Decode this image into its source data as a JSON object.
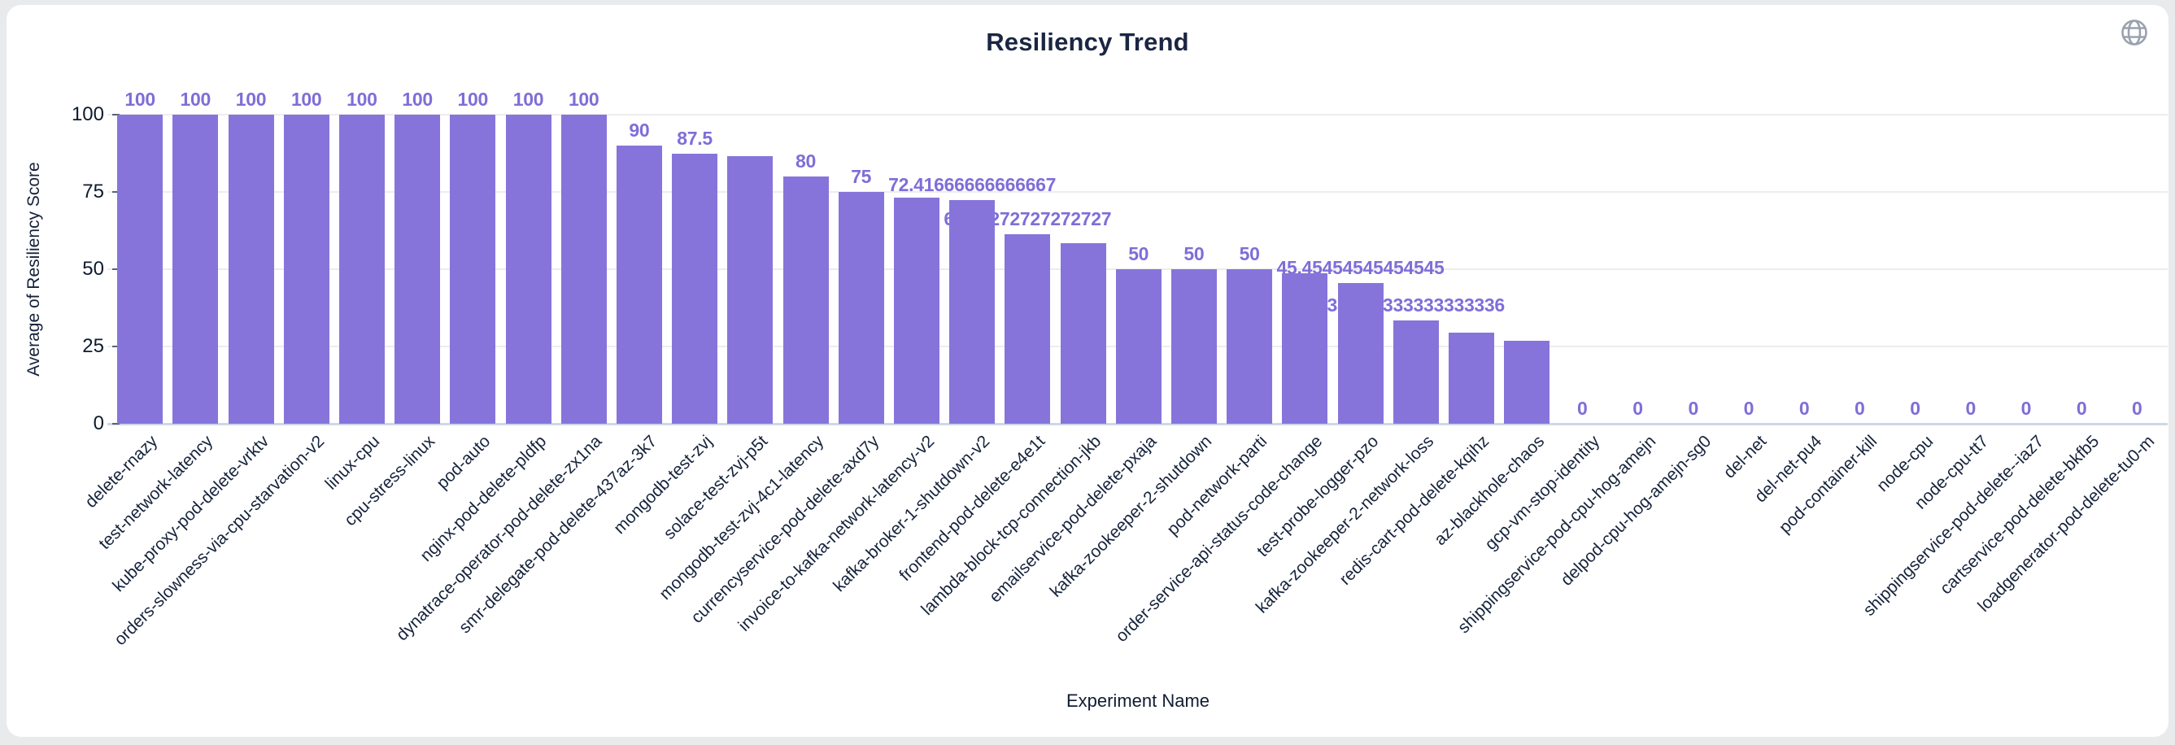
{
  "header": {
    "title": "Resiliency Trend",
    "globe_icon": "globe-icon",
    "globe_color": "#9aa1ae"
  },
  "page": {
    "background_color": "#e9eaec",
    "card_color": "#ffffff"
  },
  "chart_data": {
    "type": "bar",
    "title": "Resiliency Trend",
    "xlabel": "Experiment Name",
    "ylabel": "Average of Resiliency Score",
    "ylim": [
      0,
      100
    ],
    "yticks": [
      0,
      25,
      50,
      75,
      100
    ],
    "grid": true,
    "legend": "none",
    "bar_color": "#8774DB",
    "value_label_color": "#7e6ed8",
    "categories": [
      "delete-rnazy",
      "test-network-latency",
      "kube-proxy-pod-delete-vrktv",
      "orders-slowness-via-cpu-starvation-v2",
      "linux-cpu",
      "cpu-stress-linux",
      "pod-auto",
      "nginx-pod-delete-pldfp",
      "dynatrace-operator-pod-delete-zx1na",
      "smr-delegate-pod-delete-437az-3k7",
      "mongodb-test-zvj",
      "solace-test-zvj-p5t",
      "mongodb-test-zvj-4c1-latency",
      "currencyservice-pod-delete-axd7y",
      "invoice-to-kafka-network-latency-v2",
      "kafka-broker-1-shutdown-v2",
      "frontend-pod-delete-e4e1t",
      "lambda-block-tcp-connection-jkb",
      "emailservice-pod-delete-pxaja",
      "kafka-zookeeper-2-shutdown",
      "pod-network-parti",
      "order-service-api-status-code-change",
      "test-probe-logger-pzo",
      "kafka-zookeeper-2-network-loss",
      "redis-cart-pod-delete-kqihz",
      "az-blackhole-chaos",
      "gcp-vm-stop-identity",
      "shippingservice-pod-cpu-hog-amejn",
      "delpod-cpu-hog-amejn-sg0",
      "del-net",
      "del-net-pu4",
      "pod-container-kill",
      "node-cpu",
      "node-cpu-tt7",
      "shippingservice-pod-delete--iaz7",
      "cartservice-pod-delete-bkfb5",
      "loadgenerator-pod-delete-tu0-m"
    ],
    "values": [
      100,
      100,
      100,
      100,
      100,
      100,
      100,
      100,
      100,
      90,
      87.5,
      86.5,
      80,
      75,
      73.2,
      72.41666666666667,
      61.27272727272727,
      58.3,
      50,
      50,
      50,
      48.6,
      45.45454545454545,
      33.333333333333336,
      29.5,
      26.8,
      0,
      0,
      0,
      0,
      0,
      0,
      0,
      0,
      0,
      0,
      0
    ],
    "value_labels": [
      "100",
      "100",
      "100",
      "100",
      "100",
      "100",
      "100",
      "100",
      "100",
      "90",
      "87.5",
      null,
      "80",
      "75",
      null,
      "72.41666666666667",
      "61.27272727272727",
      null,
      "50",
      "50",
      "50",
      null,
      "45.45454545454545",
      "33.333333333333336",
      null,
      null,
      "0",
      "0",
      "0",
      "0",
      "0",
      "0",
      "0",
      "0",
      "0",
      "0",
      "0"
    ]
  }
}
